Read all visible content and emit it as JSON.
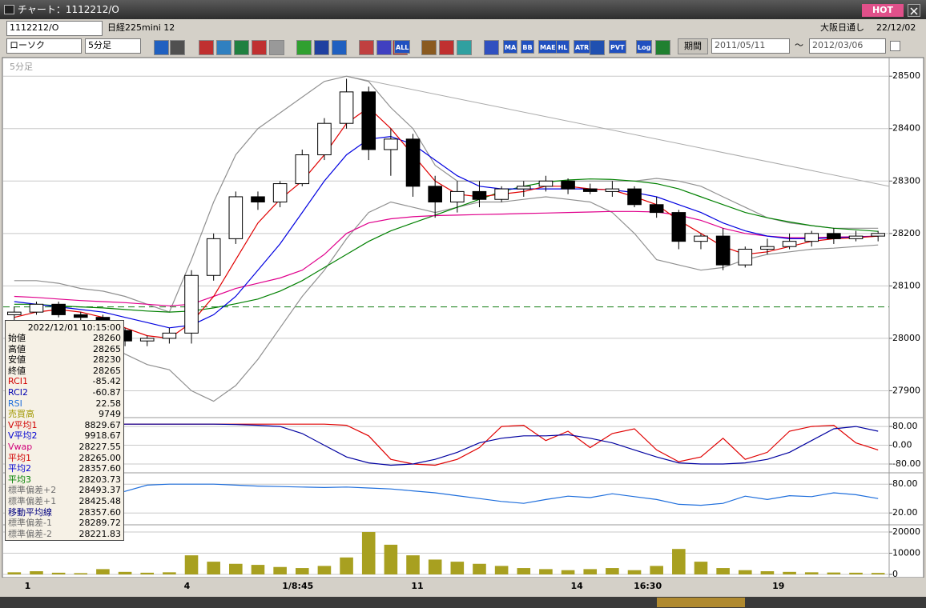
{
  "window": {
    "title": "チャート：1112212/O",
    "hot": "HOT"
  },
  "toolbar": {
    "symbol": "1112212/O",
    "name": "日経225mini 12",
    "exchange": "大阪日通し",
    "date": "22/12/02",
    "chart_style": "ローソク",
    "interval": "5分足",
    "icons": [
      "ALL",
      "MA",
      "BB",
      "MAE",
      "HL",
      "ATR",
      "PVT",
      "Log"
    ],
    "period_button": "期間",
    "from": "2011/05/11",
    "tilde": "～",
    "to": "2012/03/06"
  },
  "panel_label": "5分足",
  "info": {
    "datetime": "2022/12/01 10:15:00",
    "rows": [
      {
        "label": "始値",
        "value": "28260",
        "color": "#000000"
      },
      {
        "label": "高値",
        "value": "28265",
        "color": "#000000"
      },
      {
        "label": "安値",
        "value": "28230",
        "color": "#000000"
      },
      {
        "label": "終値",
        "value": "28265",
        "color": "#000000"
      },
      {
        "label": "RCI1",
        "value": "-85.42",
        "color": "#d00000"
      },
      {
        "label": "RCI2",
        "value": "-60.87",
        "color": "#0000b0"
      },
      {
        "label": "RSI",
        "value": "22.58",
        "color": "#1e6edc"
      },
      {
        "label": "売買高",
        "value": "9749",
        "color": "#a09800"
      },
      {
        "label": "V平均1",
        "value": "8829.67",
        "color": "#d00000"
      },
      {
        "label": "V平均2",
        "value": "9918.67",
        "color": "#0000d0"
      },
      {
        "label": "Vwap",
        "value": "28227.55",
        "color": "#d0007a"
      },
      {
        "label": "平均1",
        "value": "28265.00",
        "color": "#d00000"
      },
      {
        "label": "平均2",
        "value": "28357.60",
        "color": "#0000d0"
      },
      {
        "label": "平均3",
        "value": "28203.73",
        "color": "#008000"
      },
      {
        "label": "標準偏差+2",
        "value": "28493.37",
        "color": "#707070"
      },
      {
        "label": "標準偏差+1",
        "value": "28425.48",
        "color": "#707070"
      },
      {
        "label": "移動平均線",
        "value": "28357.60",
        "color": "#000080"
      },
      {
        "label": "標準偏差-1",
        "value": "28289.72",
        "color": "#707070"
      },
      {
        "label": "標準偏差-2",
        "value": "28221.83",
        "color": "#707070"
      }
    ]
  },
  "chart_data": [
    {
      "type": "candlestick",
      "xlim": [
        0,
        40
      ],
      "xticks": [
        {
          "value": 1.1,
          "label": "1"
        },
        {
          "value": 8.3,
          "label": "4"
        },
        {
          "value": 13.3,
          "label": "1/8:45"
        },
        {
          "value": 18.7,
          "label": "11"
        },
        {
          "value": 25.9,
          "label": "14"
        },
        {
          "value": 29.1,
          "label": "16:30"
        },
        {
          "value": 35,
          "label": "19"
        }
      ],
      "ylim": [
        27890,
        28511
      ],
      "yticks": [
        27900,
        28000,
        28100,
        28200,
        28300,
        28400,
        28500
      ],
      "grid": true,
      "up_color": "#ffffff",
      "down_color": "#000000",
      "open": [
        28045,
        28050,
        28065,
        28045,
        28040,
        28015,
        27995,
        28000,
        28010,
        28120,
        28190,
        28270,
        28260,
        28295,
        28350,
        28410,
        28470,
        28360,
        28380,
        28290,
        28260,
        28280,
        28265,
        28285,
        28290,
        28300,
        28285,
        28280,
        28285,
        28255,
        28240,
        28185,
        28195,
        28140,
        28170,
        28175,
        28185,
        28200,
        28190,
        28195
      ],
      "high": [
        28060,
        28070,
        28070,
        28050,
        28045,
        28020,
        28005,
        28020,
        28130,
        28200,
        28280,
        28280,
        28300,
        28360,
        28420,
        28495,
        28480,
        28400,
        28390,
        28310,
        28300,
        28300,
        28290,
        28300,
        28310,
        28305,
        28295,
        28300,
        28290,
        28270,
        28245,
        28200,
        28210,
        28175,
        28190,
        28200,
        28205,
        28210,
        28205,
        28205
      ],
      "low": [
        28035,
        28045,
        28040,
        28030,
        28010,
        27985,
        27985,
        27990,
        27990,
        28110,
        28180,
        28245,
        28250,
        28290,
        28340,
        28400,
        28340,
        28310,
        28270,
        28230,
        28240,
        28250,
        28260,
        28270,
        28280,
        28275,
        28275,
        28270,
        28250,
        28230,
        28170,
        28170,
        28130,
        28135,
        28160,
        28170,
        28175,
        28180,
        28185,
        28185
      ],
      "close": [
        28050,
        28065,
        28045,
        28040,
        28015,
        27995,
        28000,
        28010,
        28120,
        28190,
        28270,
        28260,
        28295,
        28350,
        28410,
        28470,
        28360,
        28380,
        28290,
        28260,
        28280,
        28265,
        28285,
        28290,
        28300,
        28285,
        28280,
        28285,
        28255,
        28240,
        28185,
        28195,
        28140,
        28170,
        28175,
        28185,
        28200,
        28190,
        28195,
        28200
      ],
      "hline": 28060,
      "hline_color": "#2e8b2e",
      "trendline": {
        "x": [
          15.5,
          40
        ],
        "y": [
          28500,
          28290
        ]
      },
      "series": [
        {
          "name": "標準偏差+2",
          "color": "#909090",
          "values": [
            28110,
            28110,
            28105,
            28095,
            28090,
            28080,
            28065,
            28050,
            28150,
            28260,
            28350,
            28400,
            28430,
            28460,
            28490,
            28500,
            28490,
            28440,
            28400,
            28330,
            28300,
            28300,
            28300,
            28300,
            28300,
            28300,
            28300,
            28300,
            28300,
            28305,
            28300,
            28290,
            28270,
            28250,
            28230,
            28220,
            28215,
            28210,
            28210,
            28210
          ]
        },
        {
          "name": "標準偏差-2",
          "color": "#909090",
          "values": [
            28030,
            28020,
            28015,
            28005,
            27990,
            27970,
            27950,
            27940,
            27900,
            27880,
            27910,
            27960,
            28020,
            28080,
            28130,
            28190,
            28240,
            28260,
            28250,
            28240,
            28250,
            28260,
            28260,
            28265,
            28270,
            28265,
            28260,
            28240,
            28200,
            28150,
            28140,
            28130,
            28135,
            28150,
            28160,
            28165,
            28170,
            28172,
            28175,
            28178
          ]
        },
        {
          "name": "平均3",
          "color": "#008000",
          "values": [
            28065,
            28065,
            28062,
            28060,
            28058,
            28055,
            28052,
            28050,
            28052,
            28058,
            28066,
            28075,
            28090,
            28110,
            28135,
            28160,
            28185,
            28205,
            28220,
            28235,
            28250,
            28265,
            28280,
            28290,
            28298,
            28302,
            28304,
            28303,
            28300,
            28295,
            28285,
            28270,
            28255,
            28240,
            28230,
            28222,
            28215,
            28210,
            28207,
            28204
          ]
        },
        {
          "name": "Vwap",
          "color": "#e0008c",
          "values": [
            28080,
            28078,
            28075,
            28072,
            28070,
            28068,
            28065,
            28062,
            28065,
            28080,
            28095,
            28105,
            28115,
            28130,
            28160,
            28200,
            28220,
            28228,
            28232,
            28234,
            28235,
            28236,
            28237,
            28238,
            28239,
            28240,
            28241,
            28242,
            28242,
            28241,
            28235,
            28225,
            28210,
            28200,
            28195,
            28192,
            28192,
            28193,
            28194,
            28195
          ]
        },
        {
          "name": "平均2",
          "color": "#0000e0",
          "values": [
            28070,
            28065,
            28060,
            28055,
            28050,
            28040,
            28030,
            28020,
            28025,
            28045,
            28080,
            28130,
            28180,
            28240,
            28300,
            28350,
            28380,
            28385,
            28370,
            28340,
            28310,
            28290,
            28285,
            28285,
            28285,
            28285,
            28285,
            28283,
            28278,
            28270,
            28255,
            28240,
            28220,
            28205,
            28195,
            28190,
            28190,
            28192,
            28193,
            28195
          ]
        },
        {
          "name": "平均1",
          "color": "#e00000",
          "values": [
            28040,
            28050,
            28055,
            28050,
            28040,
            28020,
            28005,
            28000,
            28030,
            28080,
            28150,
            28220,
            28265,
            28300,
            28350,
            28410,
            28440,
            28400,
            28350,
            28300,
            28275,
            28270,
            28275,
            28280,
            28290,
            28290,
            28285,
            28283,
            28270,
            28255,
            28225,
            28200,
            28175,
            28160,
            28165,
            28175,
            28185,
            28190,
            28192,
            28195
          ]
        }
      ]
    },
    {
      "type": "line",
      "ylim": [
        -114,
        111
      ],
      "yticks": [
        {
          "value": 80,
          "label": "80.00"
        },
        {
          "value": 0,
          "label": "0.00"
        },
        {
          "value": -80,
          "label": "-80.00"
        }
      ],
      "grid": true,
      "series": [
        {
          "name": "RCI1",
          "color": "#e00000",
          "values": [
            -80,
            -60,
            20,
            90,
            90,
            90,
            90,
            90,
            90,
            90,
            90,
            90,
            90,
            90,
            90,
            85,
            40,
            -60,
            -80,
            -85,
            -60,
            -10,
            80,
            85,
            20,
            60,
            -10,
            50,
            70,
            -20,
            -70,
            -50,
            30,
            -60,
            -30,
            60,
            80,
            85,
            10,
            -20
          ]
        },
        {
          "name": "RCI2",
          "color": "#0000a0",
          "values": [
            -80,
            -60,
            -10,
            40,
            80,
            90,
            90,
            90,
            90,
            90,
            88,
            85,
            80,
            50,
            0,
            -50,
            -75,
            -85,
            -80,
            -60,
            -30,
            10,
            30,
            40,
            40,
            45,
            30,
            10,
            -20,
            -50,
            -75,
            -80,
            -80,
            -75,
            -60,
            -30,
            20,
            70,
            80,
            60
          ]
        }
      ]
    },
    {
      "type": "line",
      "ylim": [
        -3,
        102
      ],
      "yticks": [
        {
          "value": 80,
          "label": "80.00"
        },
        {
          "value": 20,
          "label": "20.00"
        }
      ],
      "grid": true,
      "series": [
        {
          "name": "RSI",
          "color": "#1e6edc",
          "values": [
            40,
            45,
            50,
            55,
            62,
            65,
            78,
            80,
            80,
            80,
            78,
            76,
            75,
            74,
            73,
            74,
            72,
            70,
            66,
            62,
            56,
            50,
            44,
            40,
            48,
            55,
            52,
            60,
            54,
            48,
            38,
            36,
            40,
            55,
            48,
            56,
            54,
            62,
            58,
            50
          ]
        }
      ]
    },
    {
      "type": "bar",
      "ylim": [
        -750,
        22640
      ],
      "yticks": [
        0,
        10000,
        20000
      ],
      "grid": true,
      "color": "#a8a020",
      "values": [
        1000,
        1500,
        800,
        600,
        2500,
        1200,
        800,
        1000,
        9000,
        6000,
        5000,
        4500,
        3500,
        3000,
        4000,
        8000,
        20000,
        14000,
        9000,
        7000,
        6000,
        5000,
        4000,
        3000,
        2500,
        2000,
        2500,
        3000,
        2000,
        4000,
        12000,
        6000,
        3000,
        2000,
        1500,
        1200,
        1000,
        900,
        800,
        700
      ]
    }
  ]
}
